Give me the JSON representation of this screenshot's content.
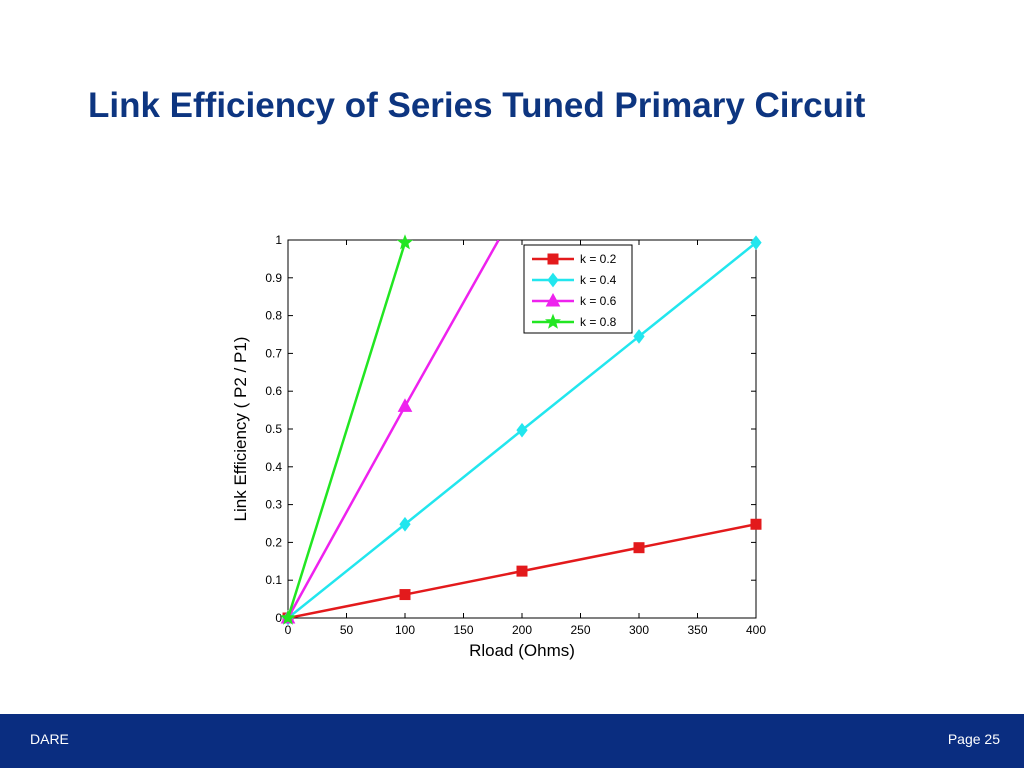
{
  "slide": {
    "title": "Link Efficiency of Series Tuned Primary Circuit"
  },
  "footer": {
    "left_text": "DARE",
    "page_label": "Page 25",
    "color": "#0a2d80"
  },
  "chart_data": {
    "type": "line",
    "title": "",
    "xlabel": "Rload (Ohms)",
    "ylabel": "Link Efficiency ( P2 / P1)",
    "xlim": [
      0,
      400
    ],
    "ylim": [
      0,
      1
    ],
    "xticks": [
      0,
      50,
      100,
      150,
      200,
      250,
      300,
      350,
      400
    ],
    "yticks": [
      0,
      0.1,
      0.2,
      0.3,
      0.4,
      0.5,
      0.6,
      0.7,
      0.8,
      0.9,
      1
    ],
    "grid": false,
    "legend_position": "top-right",
    "series": [
      {
        "name": "k = 0.2",
        "color": "#e31a1c",
        "marker": "square",
        "x": [
          0,
          100,
          200,
          300,
          400
        ],
        "y": [
          0,
          0.062,
          0.124,
          0.186,
          0.248
        ]
      },
      {
        "name": "k = 0.4",
        "color": "#22e6ee",
        "marker": "diamond",
        "x": [
          0,
          100,
          200,
          300,
          400
        ],
        "y": [
          0,
          0.248,
          0.497,
          0.745,
          0.993
        ]
      },
      {
        "name": "k = 0.6",
        "color": "#ee22ee",
        "marker": "triangle",
        "x": [
          0,
          100,
          180
        ],
        "y": [
          0,
          0.56,
          1.0
        ],
        "marker_x": [
          0,
          100
        ]
      },
      {
        "name": "k = 0.8",
        "color": "#22e622",
        "marker": "star",
        "x": [
          0,
          100
        ],
        "y": [
          0,
          0.993
        ]
      }
    ]
  }
}
